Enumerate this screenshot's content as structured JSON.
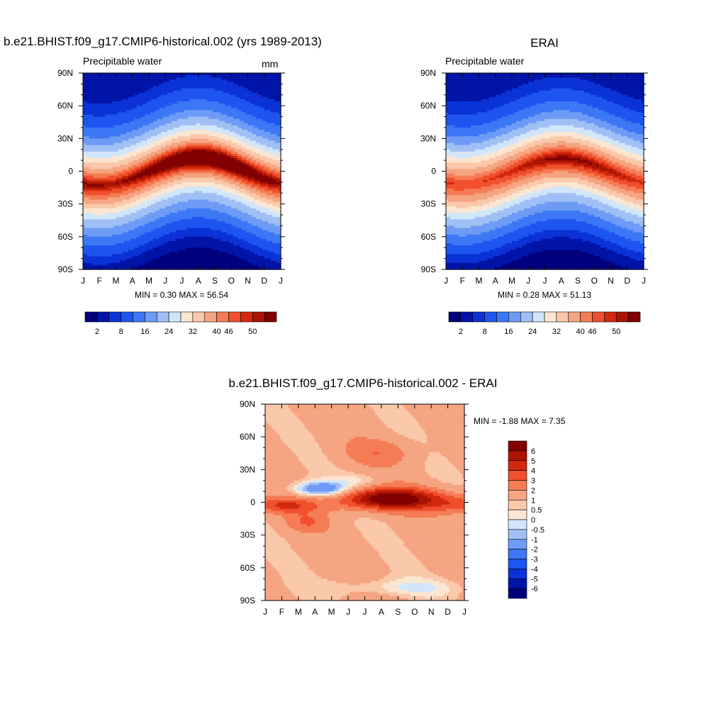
{
  "chart_data": [
    {
      "type": "heatmap",
      "title": "b.e21.BHIST.f09_g17.CMIP6-historical.002 (yrs 1989-2013)",
      "subtitle": "Precipitable water",
      "units": "mm",
      "stats": "MIN =   0.30 MAX =  56.54",
      "x_ticks": [
        "J",
        "F",
        "M",
        "A",
        "M",
        "J",
        "J",
        "A",
        "S",
        "O",
        "N",
        "D",
        "J"
      ],
      "y_ticks": [
        "90N",
        "60N",
        "30N",
        "0",
        "30S",
        "60S",
        "90S"
      ],
      "ylim": [
        -90,
        90
      ],
      "lat_profile": [
        [
          -90,
          0.3
        ],
        [
          -75,
          4
        ],
        [
          -60,
          10
        ],
        [
          -45,
          17
        ],
        [
          -30,
          25
        ],
        [
          -15,
          38
        ],
        [
          0,
          50
        ],
        [
          15,
          36
        ],
        [
          30,
          24
        ],
        [
          45,
          15
        ],
        [
          60,
          9
        ],
        [
          75,
          5
        ],
        [
          90,
          2.5
        ]
      ],
      "seasonal_shift_deg": 13,
      "peak_boost": 8,
      "levels": [
        2,
        5,
        8,
        12,
        16,
        20,
        24,
        28,
        32,
        36,
        40,
        43,
        46,
        48,
        50
      ],
      "colorbar_labels": [
        "2",
        "8",
        "16",
        "24",
        "32",
        "40",
        "46",
        "50"
      ]
    },
    {
      "type": "heatmap",
      "title": "ERAI",
      "subtitle": "Precipitable water",
      "stats": "MIN =   0.28 MAX =  51.13",
      "x_ticks": [
        "J",
        "F",
        "M",
        "A",
        "M",
        "J",
        "J",
        "A",
        "S",
        "O",
        "N",
        "D",
        "J"
      ],
      "y_ticks": [
        "90N",
        "60N",
        "30N",
        "0",
        "30S",
        "60S",
        "90S"
      ],
      "ylim": [
        -90,
        90
      ],
      "lat_profile": [
        [
          -90,
          0.3
        ],
        [
          -75,
          4
        ],
        [
          -60,
          10
        ],
        [
          -45,
          17
        ],
        [
          -30,
          25
        ],
        [
          -15,
          37
        ],
        [
          0,
          46
        ],
        [
          15,
          35
        ],
        [
          30,
          24
        ],
        [
          45,
          15
        ],
        [
          60,
          9
        ],
        [
          75,
          5
        ],
        [
          90,
          2
        ]
      ],
      "seasonal_shift_deg": 12,
      "peak_boost": 5,
      "levels": [
        2,
        5,
        8,
        12,
        16,
        20,
        24,
        28,
        32,
        36,
        40,
        43,
        46,
        48,
        50
      ],
      "colorbar_labels": [
        "2",
        "8",
        "16",
        "24",
        "32",
        "40",
        "46",
        "50"
      ]
    },
    {
      "type": "heatmap",
      "title": "b.e21.BHIST.f09_g17.CMIP6-historical.002 - ERAI",
      "stats": "MIN =  -1.88 MAX =   7.35",
      "x_ticks": [
        "J",
        "F",
        "M",
        "A",
        "M",
        "J",
        "J",
        "A",
        "S",
        "O",
        "N",
        "D",
        "J"
      ],
      "y_ticks": [
        "90N",
        "60N",
        "30N",
        "0",
        "30S",
        "60S",
        "90S"
      ],
      "ylim": [
        -90,
        90
      ],
      "levels": [
        -6,
        -5,
        -4,
        -3,
        -2,
        -1,
        -0.5,
        0,
        0.5,
        1,
        2,
        3,
        4,
        5,
        6
      ],
      "colorbar_labels": [
        "6",
        "5",
        "4",
        "3",
        "2",
        "1",
        "0.5",
        "0",
        "-0.5",
        "-1",
        "-2",
        "-3",
        "-4",
        "-5",
        "-6"
      ]
    }
  ],
  "palette": [
    "#00007d",
    "#0014a8",
    "#0a32d6",
    "#1e55f0",
    "#3c78f5",
    "#6e9bf5",
    "#a0c0f5",
    "#d2e6fa",
    "#fae6d2",
    "#fac8aa",
    "#f5a582",
    "#f57d55",
    "#f0502d",
    "#d2280f",
    "#aa1400",
    "#820000"
  ]
}
